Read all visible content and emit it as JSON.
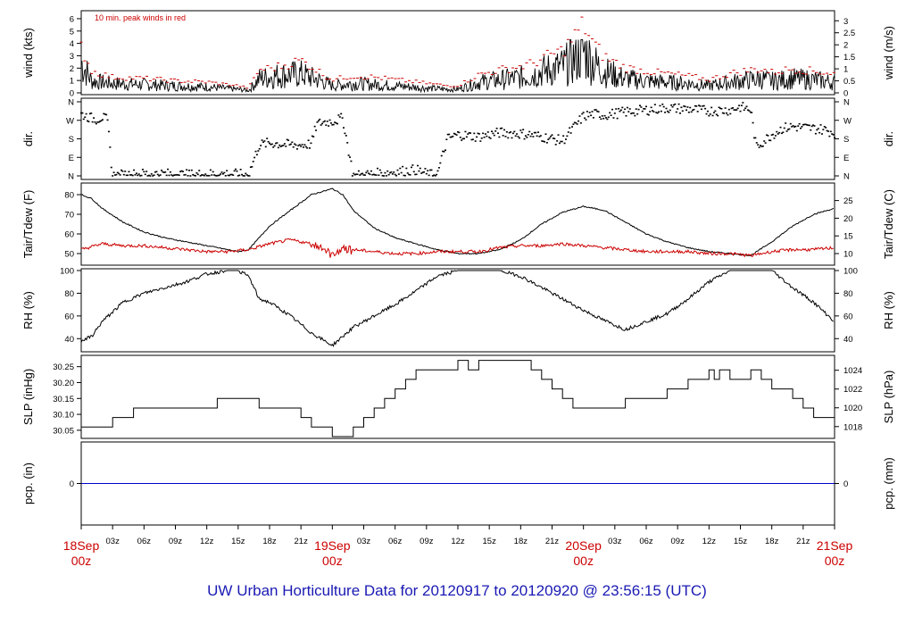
{
  "title": "UW Urban Horticulture Data for 20120917  to  20120920 @ 23:56:15  (UTC)",
  "colors": {
    "accent": "#cc0000",
    "title": "#1a1ab4",
    "line": "#000000",
    "precip": "#0000cc"
  },
  "x_axis": {
    "ticks": [
      {
        "t": 0,
        "label": "18Sep",
        "sub": "00z",
        "major": true
      },
      {
        "t": 3,
        "label": "03z"
      },
      {
        "t": 6,
        "label": "06z"
      },
      {
        "t": 9,
        "label": "09z"
      },
      {
        "t": 12,
        "label": "12z"
      },
      {
        "t": 15,
        "label": "15z"
      },
      {
        "t": 18,
        "label": "18z"
      },
      {
        "t": 21,
        "label": "21z"
      },
      {
        "t": 24,
        "label": "19Sep",
        "sub": "00z",
        "major": true
      },
      {
        "t": 27,
        "label": "03z"
      },
      {
        "t": 30,
        "label": "06z"
      },
      {
        "t": 33,
        "label": "09z"
      },
      {
        "t": 36,
        "label": "12z"
      },
      {
        "t": 39,
        "label": "15z"
      },
      {
        "t": 42,
        "label": "18z"
      },
      {
        "t": 45,
        "label": "21z"
      },
      {
        "t": 48,
        "label": "20Sep",
        "sub": "00z",
        "major": true
      },
      {
        "t": 51,
        "label": "03z"
      },
      {
        "t": 54,
        "label": "06z"
      },
      {
        "t": 57,
        "label": "09z"
      },
      {
        "t": 60,
        "label": "12z"
      },
      {
        "t": 63,
        "label": "15z"
      },
      {
        "t": 66,
        "label": "18z"
      },
      {
        "t": 69,
        "label": "21z"
      },
      {
        "t": 72,
        "label": "21Sep",
        "sub": "00z",
        "major": true
      }
    ],
    "range_hours": [
      0,
      72
    ]
  },
  "panels": {
    "wind": {
      "ylabel_left": "wind (kts)",
      "ylabel_right": "wind (m/s)",
      "annotation": "10 min. peak winds in red",
      "left_ticks": [
        "0",
        "1",
        "2",
        "3",
        "4",
        "5",
        "6"
      ],
      "right_ticks": [
        "0",
        "0.5",
        "1",
        "1.5",
        "2",
        "2.5",
        "3"
      ]
    },
    "dir": {
      "ylabel_left": "dir.",
      "ylabel_right": "dir.",
      "ticks": [
        "N",
        "E",
        "S",
        "W",
        "N"
      ]
    },
    "temp": {
      "ylabel_left": "Tair/Tdew (F)",
      "ylabel_right": "Tair/Tdew (C)",
      "left_ticks": [
        "50",
        "60",
        "70",
        "80"
      ],
      "right_ticks": [
        "10",
        "15",
        "20",
        "25"
      ]
    },
    "rh": {
      "ylabel_left": "RH (%)",
      "ylabel_right": "RH (%)",
      "ticks": [
        "40",
        "60",
        "80",
        "100"
      ]
    },
    "slp": {
      "ylabel_left": "SLP (inHg)",
      "ylabel_right": "SLP (hPa)",
      "left_ticks": [
        "30.05",
        "30.10",
        "30.15",
        "30.20",
        "30.25"
      ],
      "right_ticks": [
        "1018",
        "1020",
        "1022",
        "1024"
      ]
    },
    "pcp": {
      "ylabel_left": "pcp. (in)",
      "ylabel_right": "pcp. (mm)",
      "left_ticks": [
        "0"
      ],
      "right_ticks": [
        "0"
      ]
    }
  },
  "chart_data": [
    {
      "type": "line",
      "panel": "wind",
      "x_unit": "hours since 18Sep 00z",
      "ylim": [
        0,
        6.5
      ],
      "series": [
        {
          "values_x": [
            0,
            1,
            3,
            6,
            9,
            12,
            15,
            16,
            17,
            19,
            21,
            22,
            23,
            24,
            26,
            28,
            30,
            33,
            35,
            36,
            38,
            40,
            42,
            43,
            44,
            45,
            46,
            47,
            48,
            49,
            50,
            52,
            54,
            56,
            58,
            60,
            62,
            64,
            65,
            66,
            68,
            70,
            72
          ],
          "values_y": [
            2.6,
            1.0,
            0.8,
            0.7,
            0.6,
            0.5,
            0.3,
            0.2,
            1.2,
            1.5,
            1.6,
            1.3,
            1.0,
            0.6,
            0.8,
            0.7,
            0.6,
            0.4,
            0.3,
            0.3,
            0.9,
            1.1,
            1.3,
            1.5,
            1.8,
            2.0,
            2.2,
            2.8,
            3.6,
            2.5,
            1.8,
            1.2,
            1.0,
            0.9,
            0.8,
            0.6,
            0.9,
            1.1,
            1.2,
            1.0,
            1.2,
            1.1,
            0.9
          ]
        },
        {
          "values_x": [
            0,
            1,
            3,
            6,
            9,
            12,
            15,
            16,
            17,
            19,
            21,
            22,
            23,
            24,
            26,
            28,
            30,
            33,
            35,
            36,
            38,
            40,
            42,
            43,
            44,
            45,
            46,
            47,
            48,
            49,
            50,
            52,
            54,
            56,
            58,
            60,
            62,
            64,
            65,
            66,
            68,
            70,
            72
          ],
          "values_y": [
            3.8,
            1.8,
            1.3,
            1.2,
            1.0,
            0.9,
            0.6,
            0.4,
            1.9,
            2.2,
            2.7,
            2.2,
            1.6,
            1.1,
            1.4,
            1.3,
            1.1,
            0.8,
            0.6,
            0.6,
            1.5,
            1.9,
            2.2,
            2.4,
            2.8,
            3.2,
            3.5,
            4.5,
            5.7,
            4.0,
            3.0,
            2.1,
            1.8,
            1.6,
            1.4,
            1.1,
            1.6,
            1.9,
            2.0,
            1.7,
            2.0,
            1.8,
            1.6
          ]
        }
      ]
    },
    {
      "type": "scatter",
      "panel": "dir",
      "x_unit": "hours since 18Sep 00z",
      "ylim": [
        0,
        360
      ],
      "series": [
        {
          "values_x": [
            0,
            0.5,
            1,
            1.5,
            2,
            2.5,
            3,
            4,
            6,
            8,
            10,
            12,
            14,
            16,
            17,
            18,
            19,
            20,
            21,
            22,
            22.5,
            23,
            24,
            25,
            26,
            27,
            28,
            30,
            32,
            33,
            34,
            35,
            36,
            38,
            40,
            42,
            43,
            44,
            45,
            46,
            46.5,
            47,
            47.5,
            48,
            49,
            50,
            52,
            54,
            56,
            58,
            60,
            62,
            63,
            64,
            64.5,
            65,
            65.5,
            66,
            67,
            68,
            69,
            70,
            71,
            72
          ],
          "values_y": [
            300,
            290,
            280,
            275,
            285,
            270,
            0,
            5,
            10,
            10,
            5,
            8,
            10,
            5,
            150,
            160,
            155,
            150,
            150,
            155,
            250,
            260,
            265,
            280,
            0,
            5,
            10,
            20,
            30,
            10,
            0,
            180,
            200,
            190,
            210,
            205,
            200,
            190,
            180,
            170,
            200,
            230,
            260,
            290,
            300,
            295,
            310,
            320,
            330,
            325,
            315,
            320,
            335,
            320,
            140,
            160,
            180,
            200,
            230,
            240,
            235,
            230,
            225,
            210
          ]
        }
      ]
    },
    {
      "type": "line",
      "panel": "temp",
      "x_unit": "hours since 18Sep 00z",
      "ylim": [
        45,
        85
      ],
      "series": [
        {
          "values_x": [
            0,
            1,
            2,
            4,
            6,
            8,
            10,
            12,
            14,
            15,
            16,
            17,
            18,
            20,
            22,
            24,
            25,
            26,
            28,
            30,
            32,
            34,
            36,
            38,
            40,
            42,
            44,
            46,
            48,
            50,
            52,
            54,
            56,
            58,
            60,
            62,
            64,
            66,
            68,
            70,
            72
          ],
          "values_y": [
            80,
            78,
            73,
            66,
            61,
            58,
            56,
            54,
            52,
            51,
            52,
            58,
            64,
            72,
            80,
            83,
            80,
            72,
            63,
            58,
            55,
            52,
            50,
            50,
            52,
            57,
            65,
            71,
            74,
            72,
            66,
            60,
            56,
            53,
            51,
            50,
            49,
            56,
            64,
            70,
            73
          ]
        },
        {
          "values_x": [
            0,
            2,
            4,
            6,
            8,
            10,
            12,
            14,
            16,
            18,
            20,
            22,
            23,
            24,
            24.5,
            25,
            26,
            28,
            30,
            32,
            34,
            36,
            38,
            40,
            42,
            44,
            46,
            48,
            50,
            52,
            54,
            56,
            58,
            60,
            62,
            64,
            66,
            68,
            70,
            72
          ],
          "values_y": [
            52,
            55,
            54,
            54,
            53,
            52,
            51,
            51,
            52,
            55,
            57,
            55,
            53,
            49,
            51,
            53,
            52,
            51,
            50,
            50,
            51,
            51,
            51,
            53,
            54,
            54,
            55,
            54,
            53,
            52,
            51,
            51,
            51,
            50,
            50,
            49,
            51,
            52,
            52,
            53
          ]
        }
      ]
    },
    {
      "type": "line",
      "panel": "rh",
      "x_unit": "hours since 18Sep 00z",
      "ylim": [
        30,
        100
      ],
      "series": [
        {
          "values_x": [
            0,
            1,
            2,
            4,
            6,
            8,
            10,
            12,
            14,
            15,
            16,
            17,
            18,
            20,
            22,
            24,
            26,
            28,
            30,
            32,
            34,
            36,
            38,
            40,
            42,
            44,
            46,
            48,
            50,
            52,
            54,
            56,
            58,
            60,
            62,
            64,
            65,
            66,
            68,
            70,
            72
          ],
          "values_y": [
            38,
            42,
            55,
            72,
            80,
            85,
            90,
            97,
            100,
            100,
            95,
            75,
            72,
            60,
            45,
            34,
            50,
            60,
            70,
            82,
            95,
            100,
            100,
            100,
            95,
            85,
            75,
            65,
            56,
            48,
            55,
            62,
            75,
            90,
            100,
            100,
            100,
            100,
            85,
            72,
            55
          ]
        }
      ]
    },
    {
      "type": "line",
      "panel": "slp",
      "x_unit": "hours since 18Sep 00z",
      "ylim": [
        30.03,
        30.28
      ],
      "series": [
        {
          "values_x": [
            0,
            2,
            3,
            4,
            5,
            12,
            13,
            16,
            17,
            20,
            21,
            22,
            23,
            24,
            25,
            26,
            27,
            28,
            29,
            30,
            31,
            32,
            33,
            34,
            36,
            37,
            37.5,
            38,
            43,
            44,
            45,
            46,
            47,
            48,
            50,
            52,
            56,
            58,
            60,
            60.5,
            61,
            62,
            63,
            64,
            65,
            66,
            67,
            68,
            69,
            70,
            72
          ],
          "values_y": [
            30.06,
            30.06,
            30.09,
            30.09,
            30.12,
            30.12,
            30.15,
            30.15,
            30.12,
            30.12,
            30.09,
            30.06,
            30.06,
            30.03,
            30.03,
            30.06,
            30.09,
            30.12,
            30.15,
            30.18,
            30.21,
            30.24,
            30.24,
            30.24,
            30.27,
            30.24,
            30.24,
            30.27,
            30.24,
            30.21,
            30.18,
            30.15,
            30.12,
            30.12,
            30.12,
            30.15,
            30.18,
            30.21,
            30.24,
            30.21,
            30.24,
            30.21,
            30.21,
            30.24,
            30.21,
            30.18,
            30.18,
            30.15,
            30.12,
            30.09,
            30.09
          ]
        }
      ]
    },
    {
      "type": "line",
      "panel": "pcp",
      "x_unit": "hours since 18Sep 00z",
      "ylim": [
        -1,
        1
      ],
      "series": [
        {
          "values_x": [
            0,
            72
          ],
          "values_y": [
            0,
            0
          ]
        }
      ]
    }
  ]
}
